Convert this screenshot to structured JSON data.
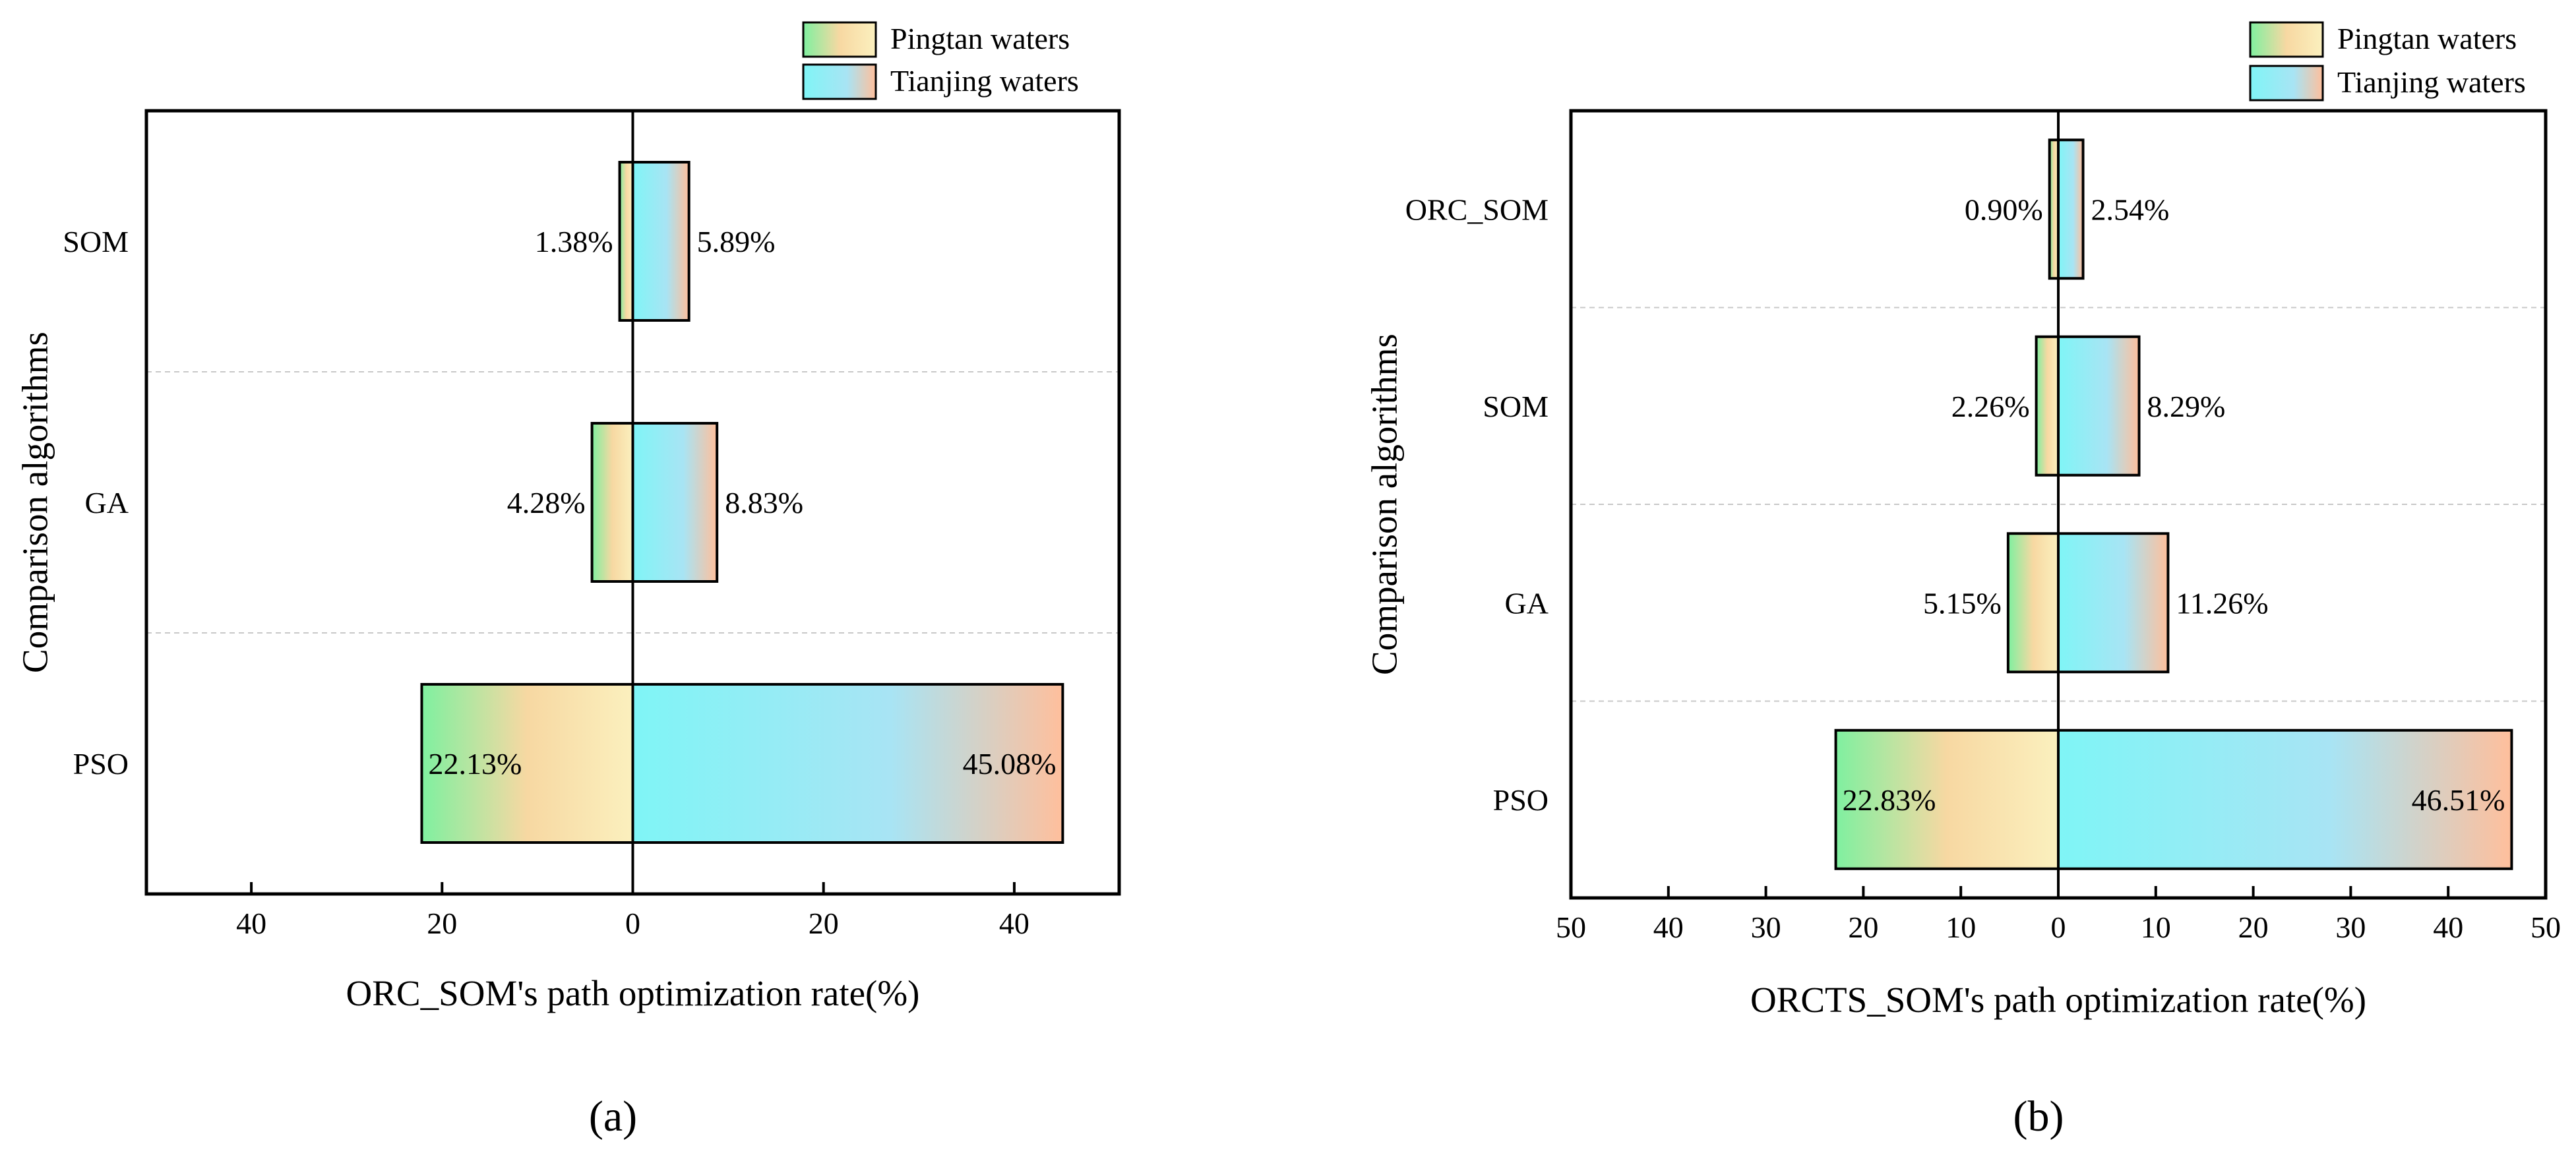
{
  "chart_data": [
    {
      "type": "bar",
      "orientation": "horizontal-diverging",
      "panel_label": "(a)",
      "title": "",
      "xlabel": "ORC_SOM's path optimization rate(%)",
      "ylabel": "Comparison algorithms",
      "categories": [
        "SOM",
        "GA",
        "PSO"
      ],
      "xlim": [
        -51,
        51
      ],
      "xticks": [
        -40,
        -20,
        0,
        20,
        40
      ],
      "xtick_labels": [
        "40",
        "20",
        "0",
        "20",
        "40"
      ],
      "legend_position": "top-right",
      "grid": "horizontal dashed separators",
      "series": [
        {
          "name": "Pingtan waters",
          "side": "left",
          "values": [
            1.38,
            4.28,
            22.13
          ],
          "labels": [
            "1.38%",
            "4.28%",
            "22.13%"
          ],
          "gradient": [
            "#7ff0a0",
            "#f7d8a2",
            "#fbf0be"
          ]
        },
        {
          "name": "Tianjing waters",
          "side": "right",
          "values": [
            5.89,
            8.83,
            45.08
          ],
          "labels": [
            "5.89%",
            "8.83%",
            "45.08%"
          ],
          "gradient": [
            "#7ff5f6",
            "#a8e4f4",
            "#ffbf9c"
          ]
        }
      ]
    },
    {
      "type": "bar",
      "orientation": "horizontal-diverging",
      "panel_label": "(b)",
      "title": "",
      "xlabel": "ORCTS_SOM's path optimization rate(%)",
      "ylabel": "Comparison algorithms",
      "categories": [
        "ORC_SOM",
        "SOM",
        "GA",
        "PSO"
      ],
      "xlim": [
        -50,
        50
      ],
      "xticks": [
        -50,
        -40,
        -30,
        -20,
        -10,
        0,
        10,
        20,
        30,
        40,
        50
      ],
      "xtick_labels": [
        "50",
        "40",
        "30",
        "20",
        "10",
        "0",
        "10",
        "20",
        "30",
        "40",
        "50"
      ],
      "legend_position": "top-right",
      "grid": "horizontal dashed separators",
      "series": [
        {
          "name": "Pingtan waters",
          "side": "left",
          "values": [
            0.9,
            2.26,
            5.15,
            22.83
          ],
          "labels": [
            "0.90%",
            "2.26%",
            "5.15%",
            "22.83%"
          ],
          "gradient": [
            "#7ff0a0",
            "#f7d8a2",
            "#fbf0be"
          ]
        },
        {
          "name": "Tianjing waters",
          "side": "right",
          "values": [
            2.54,
            8.29,
            11.26,
            46.51
          ],
          "labels": [
            "2.54%",
            "8.29%",
            "11.26%",
            "46.51%"
          ],
          "gradient": [
            "#7ff5f6",
            "#a8e4f4",
            "#ffbf9c"
          ]
        }
      ]
    }
  ]
}
